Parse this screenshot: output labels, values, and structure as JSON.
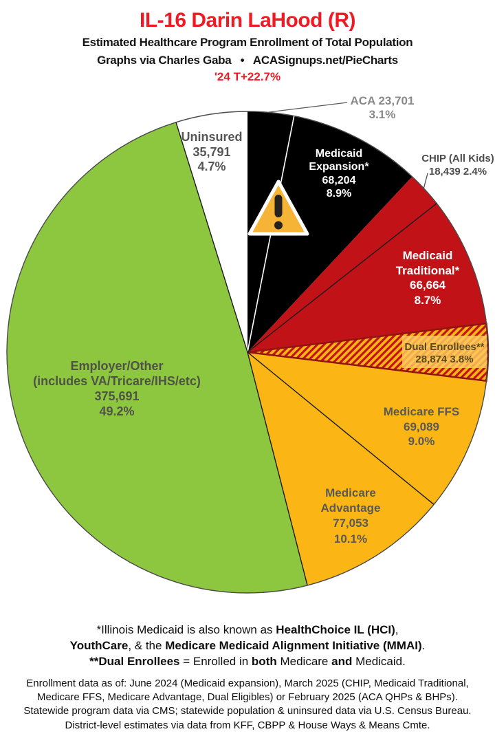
{
  "header": {
    "title": "IL-16 Darin LaHood (R)",
    "subtitle1": "Estimated Healthcare Program Enrollment of Total Population",
    "subtitle2": "Graphs via Charles Gaba   •   ACASignups.net/PieCharts",
    "subtitle3": "'24 T+22.7%"
  },
  "chart_data": {
    "type": "pie",
    "title": "IL-16 Darin LaHood (R) — Estimated Healthcare Program Enrollment of Total Population",
    "units": "people",
    "direction": "clockwise-from-top",
    "colors": {
      "black": "#000000",
      "red": "#C11218",
      "gold": "#FBB615",
      "green": "#8DC63F",
      "white": "#FFFFFF",
      "hatch_stripe": "#C11218",
      "title_red": "#ED1C24",
      "dual_outline": "#8F1511"
    },
    "slices": [
      {
        "name": "ACA",
        "value": 23701,
        "pct": 3.1,
        "color": "#000000",
        "label_lines": [
          "ACA 23,701",
          "3.1%"
        ]
      },
      {
        "name": "Medicaid Expansion",
        "value": 68204,
        "pct": 8.9,
        "color": "#000000",
        "label_lines": [
          "Medicaid",
          "Expansion*",
          "68,204",
          "8.9%"
        ]
      },
      {
        "name": "CHIP (All Kids)",
        "value": 18439,
        "pct": 2.4,
        "color": "#C11218",
        "label_lines": [
          "CHIP (All Kids)",
          "18,439 2.4%"
        ]
      },
      {
        "name": "Medicaid Traditional",
        "value": 66664,
        "pct": 8.7,
        "color": "#C11218",
        "label_lines": [
          "Medicaid",
          "Traditional*",
          "66,664",
          "8.7%"
        ]
      },
      {
        "name": "Dual Enrollees",
        "value": 28874,
        "pct": 3.8,
        "color": "hatch(gold/red)",
        "label_lines": [
          "Dual Enrollees**",
          "28,874 3.8%"
        ]
      },
      {
        "name": "Medicare FFS",
        "value": 69089,
        "pct": 9.0,
        "color": "#FBB615",
        "label_lines": [
          "Medicare FFS",
          "69,089",
          "9.0%"
        ]
      },
      {
        "name": "Medicare Advantage",
        "value": 77053,
        "pct": 10.1,
        "color": "#FBB615",
        "label_lines": [
          "Medicare",
          "Advantage",
          "77,053",
          "10.1%"
        ]
      },
      {
        "name": "Employer/Other",
        "value": 375691,
        "pct": 49.2,
        "color": "#8DC63F",
        "label_lines": [
          "Employer/Other",
          "(includes VA/Tricare/IHS/etc)",
          "375,691",
          "49.2%"
        ]
      },
      {
        "name": "Uninsured",
        "value": 35791,
        "pct": 4.7,
        "color": "#FFFFFF",
        "label_lines": [
          "Uninsured",
          "35,791",
          "4.7%"
        ]
      }
    ]
  },
  "footnote1": {
    "lines": [
      [
        {
          "t": "*Illinois Medicaid is also known as ",
          "b": 0
        },
        {
          "t": "HealthChoice IL (HCI)",
          "b": 1
        },
        {
          "t": ",",
          "b": 0
        }
      ],
      [
        {
          "t": "YouthCare",
          "b": 1
        },
        {
          "t": ", & the ",
          "b": 0
        },
        {
          "t": "Medicare Medicaid Alignment Initiative (MMAI)",
          "b": 1
        },
        {
          "t": ".",
          "b": 0
        }
      ],
      [
        {
          "t": "**Dual Enrollees",
          "b": 1
        },
        {
          "t": " = Enrolled in ",
          "b": 0
        },
        {
          "t": "both",
          "b": 1
        },
        {
          "t": " Medicare ",
          "b": 0
        },
        {
          "t": "and",
          "b": 1
        },
        {
          "t": " Medicaid.",
          "b": 0
        }
      ]
    ]
  },
  "footnote2": {
    "lines": [
      "Enrollment data as of: June 2024 (Medicaid expansion), March 2025 (CHIP, Medicaid Traditional,",
      "Medicare FFS, Medicare Advantage, Dual Eligibles) or February 2025 (ACA QHPs & BHPs).",
      "Statewide program data via CMS; statewide population & uninsured data via U.S. Census Bureau.",
      "District-level estimates via data from KFF, CBPP & House Ways & Means Cmte."
    ]
  }
}
